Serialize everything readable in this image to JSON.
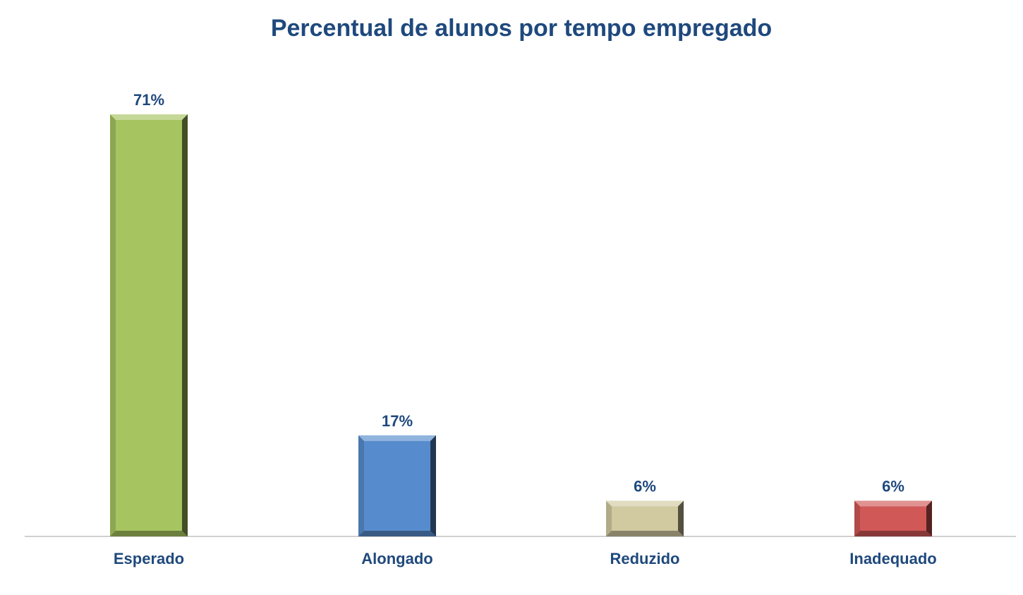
{
  "chart_data": {
    "type": "bar",
    "title": "Percentual de alunos por tempo empregado",
    "xlabel": "",
    "ylabel": "",
    "ylim": [
      0,
      71
    ],
    "grid": false,
    "categories": [
      "Esperado",
      "Alongado",
      "Reduzido",
      "Inadequado"
    ],
    "values": [
      71,
      17,
      6,
      6
    ],
    "data_labels": [
      "71%",
      "17%",
      "6%",
      "6%"
    ],
    "colors": [
      "#a6c460",
      "#568ccd",
      "#d1c9a0",
      "#d05856"
    ],
    "text_color": "#1f497d"
  }
}
